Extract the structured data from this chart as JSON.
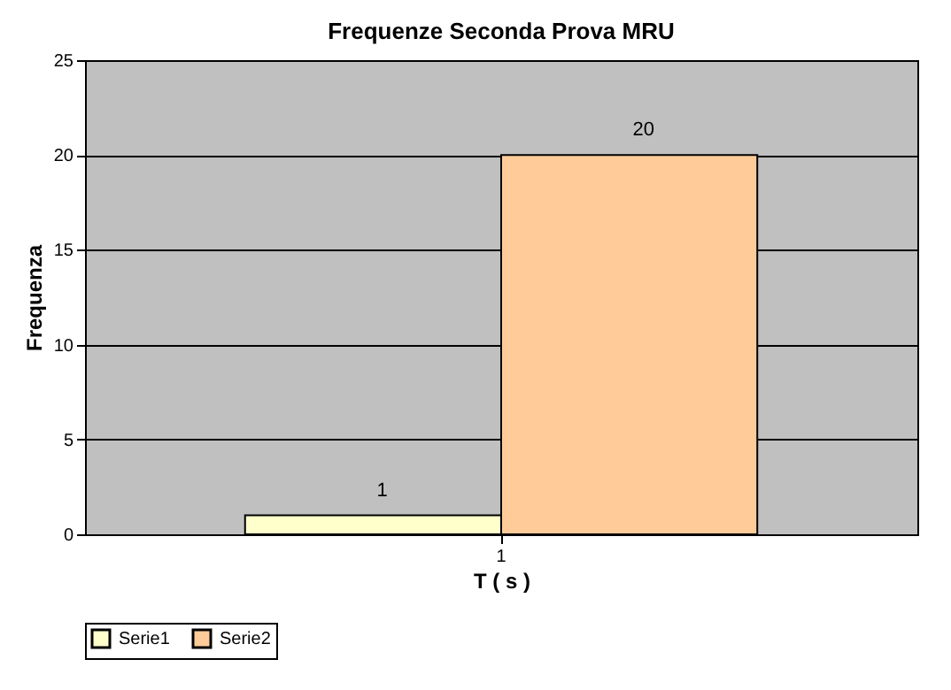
{
  "chart_data": {
    "type": "bar",
    "title": "Frequenze Seconda Prova MRU",
    "xlabel": "T ( s )",
    "ylabel": "Frequenza",
    "categories": [
      "1"
    ],
    "series": [
      {
        "name": "Serie1",
        "color": "#ffffcc",
        "values": [
          1
        ]
      },
      {
        "name": "Serie2",
        "color": "#ffcc99",
        "values": [
          20
        ]
      }
    ],
    "ylim": [
      0,
      25
    ],
    "yticks": [
      0,
      5,
      10,
      15,
      20,
      25
    ],
    "grid": "y",
    "legend": "bottom",
    "data_labels": true
  }
}
